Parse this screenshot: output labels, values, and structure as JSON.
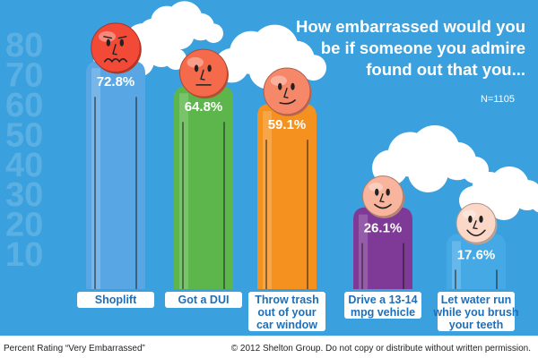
{
  "chart_data": {
    "type": "bar",
    "title_lines": [
      "How embarrassed would you",
      "be if someone you admire",
      "found out that you..."
    ],
    "sample_note": "N=1105",
    "categories": [
      [
        "Shoplift"
      ],
      [
        "Got a DUI"
      ],
      [
        "Throw trash",
        "out of your",
        "car window"
      ],
      [
        "Drive a 13-14",
        "mpg vehicle"
      ],
      [
        "Let water run",
        "while you brush",
        "your teeth"
      ]
    ],
    "values": [
      72.8,
      64.8,
      59.1,
      26.1,
      17.6
    ],
    "value_labels": [
      "72.8%",
      "64.8%",
      "59.1%",
      "26.1%",
      "17.6%"
    ],
    "faces": [
      "distressed",
      "flat",
      "smirk",
      "smile",
      "grin"
    ],
    "scale_ticks": [
      10,
      20,
      30,
      40,
      50,
      60,
      70,
      80
    ],
    "ylim": [
      0,
      85
    ],
    "ylabel": "Percent Rating \"Very Embarrassed\"",
    "colors": {
      "background": "#3aa0de",
      "bars": [
        "#58a7e4",
        "#5cb64b",
        "#f5921f",
        "#7e3a96",
        "#45a9e6"
      ],
      "faces": [
        "#f24a36",
        "#f46a4a",
        "#f6886a",
        "#f8b49c",
        "#fbd7c8"
      ],
      "label_box": "#ffffff",
      "label_text": "#1f6fb8"
    }
  },
  "footer": {
    "left": "Percent Rating “Very Embarrassed”",
    "right": "© 2012 Shelton Group. Do not copy or distribute without written permission."
  }
}
